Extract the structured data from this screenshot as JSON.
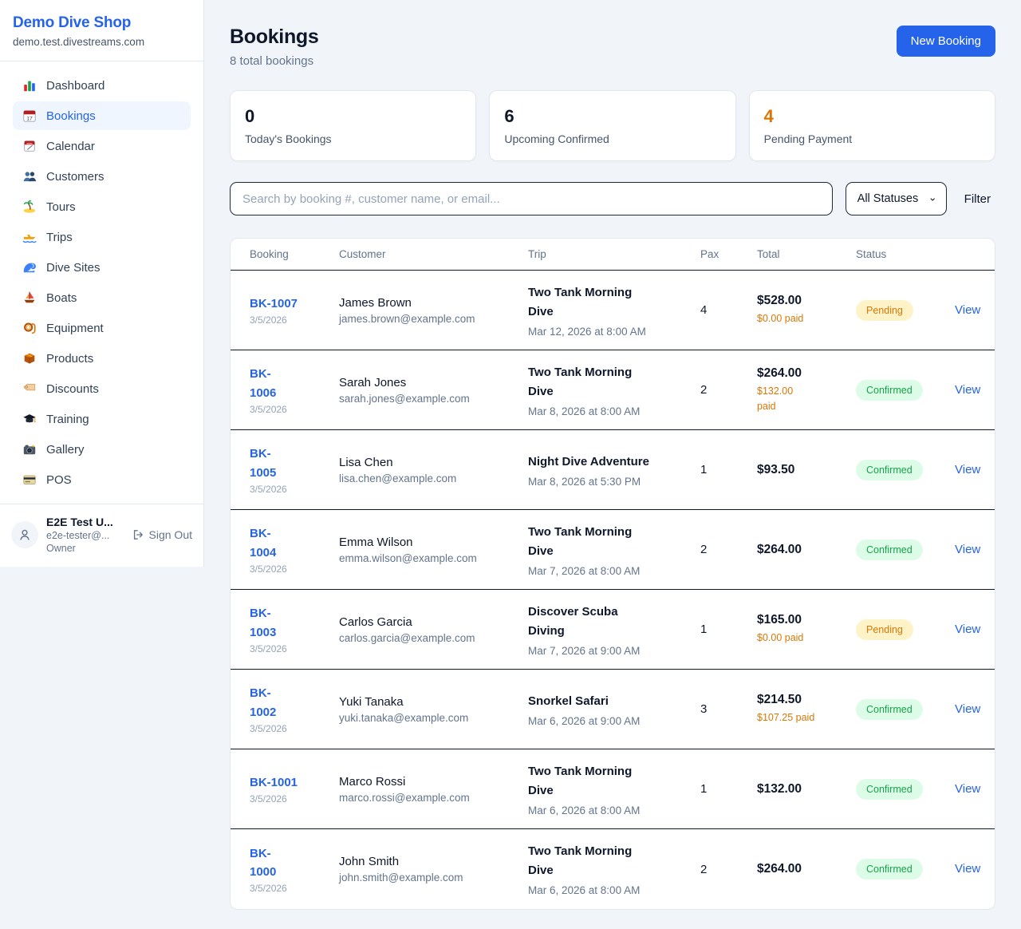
{
  "colors": {
    "accent": "#2563eb",
    "pending_bg": "#fef3c7",
    "pending_text": "#d97706",
    "confirmed_bg": "#dcfce7",
    "confirmed_text": "#16a34a",
    "paid_text": "#d97706",
    "stat_warning": "#d97706",
    "stat_normal": "#0f172a"
  },
  "sidebar": {
    "shop_name": "Demo Dive Shop",
    "shop_domain": "demo.test.divestreams.com",
    "items": [
      {
        "icon": "dashboard",
        "label": "Dashboard",
        "active": false
      },
      {
        "icon": "bookings",
        "label": "Bookings",
        "active": true
      },
      {
        "icon": "calendar",
        "label": "Calendar",
        "active": false
      },
      {
        "icon": "customers",
        "label": "Customers",
        "active": false
      },
      {
        "icon": "tours",
        "label": "Tours",
        "active": false
      },
      {
        "icon": "trips",
        "label": "Trips",
        "active": false
      },
      {
        "icon": "dive-sites",
        "label": "Dive Sites",
        "active": false
      },
      {
        "icon": "boats",
        "label": "Boats",
        "active": false
      },
      {
        "icon": "equipment",
        "label": "Equipment",
        "active": false
      },
      {
        "icon": "products",
        "label": "Products",
        "active": false
      },
      {
        "icon": "discounts",
        "label": "Discounts",
        "active": false
      },
      {
        "icon": "training",
        "label": "Training",
        "active": false
      },
      {
        "icon": "gallery",
        "label": "Gallery",
        "active": false
      },
      {
        "icon": "pos",
        "label": "POS",
        "active": false
      }
    ],
    "user": {
      "name": "E2E Test U...",
      "email": "e2e-tester@...",
      "role": "Owner",
      "sign_out_label": "Sign Out"
    }
  },
  "header": {
    "title": "Bookings",
    "subtitle": "8 total bookings",
    "new_booking_label": "New Booking"
  },
  "stats": [
    {
      "value": "0",
      "label": "Today's Bookings",
      "warning": false
    },
    {
      "value": "6",
      "label": "Upcoming Confirmed",
      "warning": false
    },
    {
      "value": "4",
      "label": "Pending Payment",
      "warning": true
    }
  ],
  "filters": {
    "search_placeholder": "Search by booking #, customer name, or email...",
    "status_selected": "All Statuses",
    "filter_label": "Filter"
  },
  "table": {
    "columns": [
      "Booking",
      "Customer",
      "Trip",
      "Pax",
      "Total",
      "Status"
    ],
    "view_label": "View",
    "rows": [
      {
        "id": "BK-1007",
        "date": "3/5/2026",
        "customer_name": "James Brown",
        "customer_email": "james.brown@example.com",
        "trip_name": "Two Tank Morning\nDive",
        "trip_datetime": "Mar 12, 2026 at 8:00 AM",
        "pax": "4",
        "total": "$528.00",
        "paid": "$0.00 paid",
        "status": "Pending"
      },
      {
        "id": "BK-\n1006",
        "date": "3/5/2026",
        "customer_name": "Sarah Jones",
        "customer_email": "sarah.jones@example.com",
        "trip_name": "Two Tank Morning\nDive",
        "trip_datetime": "Mar 8, 2026 at 8:00 AM",
        "pax": "2",
        "total": "$264.00",
        "paid": "$132.00\npaid",
        "status": "Confirmed"
      },
      {
        "id": "BK-\n1005",
        "date": "3/5/2026",
        "customer_name": "Lisa Chen",
        "customer_email": "lisa.chen@example.com",
        "trip_name": "Night Dive Adventure",
        "trip_datetime": "Mar 8, 2026 at 5:30 PM",
        "pax": "1",
        "total": "$93.50",
        "paid": "",
        "status": "Confirmed"
      },
      {
        "id": "BK-\n1004",
        "date": "3/5/2026",
        "customer_name": "Emma Wilson",
        "customer_email": "emma.wilson@example.com",
        "trip_name": "Two Tank Morning\nDive",
        "trip_datetime": "Mar 7, 2026 at 8:00 AM",
        "pax": "2",
        "total": "$264.00",
        "paid": "",
        "status": "Confirmed"
      },
      {
        "id": "BK-\n1003",
        "date": "3/5/2026",
        "customer_name": "Carlos Garcia",
        "customer_email": "carlos.garcia@example.com",
        "trip_name": "Discover Scuba\nDiving",
        "trip_datetime": "Mar 7, 2026 at 9:00 AM",
        "pax": "1",
        "total": "$165.00",
        "paid": "$0.00 paid",
        "status": "Pending"
      },
      {
        "id": "BK-\n1002",
        "date": "3/5/2026",
        "customer_name": "Yuki Tanaka",
        "customer_email": "yuki.tanaka@example.com",
        "trip_name": "Snorkel Safari",
        "trip_datetime": "Mar 6, 2026 at 9:00 AM",
        "pax": "3",
        "total": "$214.50",
        "paid": "$107.25 paid",
        "status": "Confirmed"
      },
      {
        "id": "BK-1001",
        "date": "3/5/2026",
        "customer_name": "Marco Rossi",
        "customer_email": "marco.rossi@example.com",
        "trip_name": "Two Tank Morning\nDive",
        "trip_datetime": "Mar 6, 2026 at 8:00 AM",
        "pax": "1",
        "total": "$132.00",
        "paid": "",
        "status": "Confirmed"
      },
      {
        "id": "BK-\n1000",
        "date": "3/5/2026",
        "customer_name": "John Smith",
        "customer_email": "john.smith@example.com",
        "trip_name": "Two Tank Morning\nDive",
        "trip_datetime": "Mar 6, 2026 at 8:00 AM",
        "pax": "2",
        "total": "$264.00",
        "paid": "",
        "status": "Confirmed"
      }
    ]
  }
}
